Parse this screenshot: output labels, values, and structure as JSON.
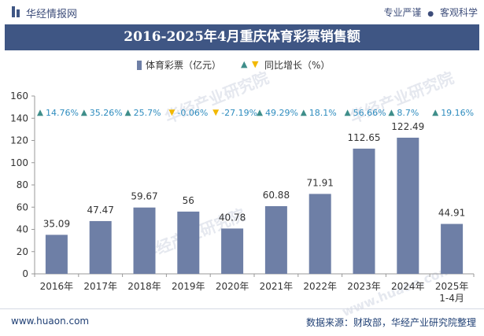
{
  "header": {
    "brand": "华经情报网",
    "tagline_left": "专业严谨",
    "tagline_right": "客观科学"
  },
  "chart_data": {
    "type": "bar",
    "title": "2016-2025年4月重庆体育彩票销售额",
    "categories": [
      "2016年",
      "2017年",
      "2018年",
      "2019年",
      "2020年",
      "2021年",
      "2022年",
      "2023年",
      "2024年",
      "2025年1-4月"
    ],
    "series": [
      {
        "name": "体育彩票（亿元）",
        "values": [
          35.09,
          47.47,
          59.67,
          56,
          40.78,
          60.88,
          71.91,
          112.65,
          122.49,
          44.91
        ],
        "value_labels": [
          "35.09",
          "47.47",
          "59.67",
          "56",
          "40.78",
          "60.88",
          "71.91",
          "112.65",
          "122.49",
          "44.91"
        ],
        "color": "#6e7fa6"
      },
      {
        "name": "同比增长（%）",
        "values": [
          14.76,
          35.26,
          25.7,
          -0.06,
          -27.19,
          49.29,
          18.1,
          56.66,
          8.7,
          19.16
        ],
        "value_labels": [
          "14.76%",
          "35.26%",
          "25.7%",
          "-0.06%",
          "-27.19%",
          "49.29%",
          "18.1%",
          "56.66%",
          "8.7%",
          "19.16%"
        ],
        "up_color": "#3f8e8a",
        "down_color": "#f2b800",
        "label_color": "#2f8dbf"
      }
    ],
    "ylim": [
      0,
      160
    ],
    "yticks": [
      0,
      20,
      40,
      60,
      80,
      100,
      120,
      140,
      160
    ],
    "grid": false,
    "legend_position": "top-center"
  },
  "watermark": {
    "text": "华经产业研究院",
    "url": "www.huaon.com"
  },
  "footer": {
    "website": "www.huaon.com",
    "source": "数据来源：财政部，华经产业研究院整理"
  }
}
